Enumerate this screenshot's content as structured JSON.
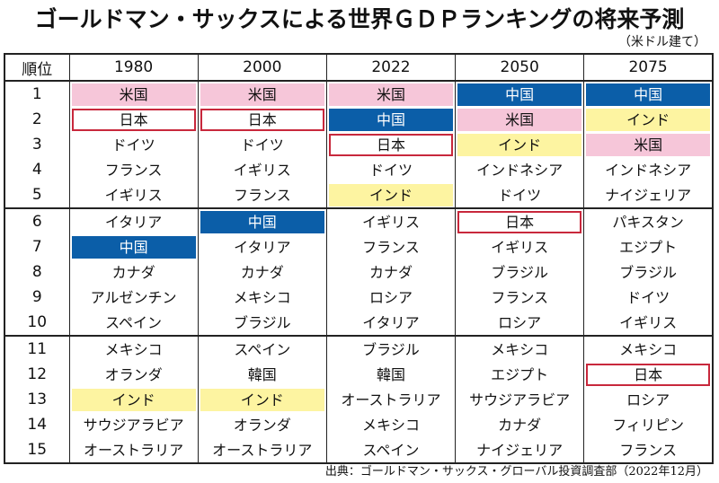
{
  "title": "ゴールドマン・サックスによる世界ＧＤＰランキングの将来予測",
  "subtitle": "（米ドル建て）",
  "source": "出典：ゴールドマン・サックス・グローバル投資調査部（2022年12月）",
  "colors": {
    "usa_fill": "#f6c6d9",
    "china_fill": "#0b5ea8",
    "india_fill": "#fdf4a1",
    "japan_border": "#c8283c"
  },
  "chart_data": {
    "type": "table",
    "header": [
      "順位",
      "1980",
      "2000",
      "2022",
      "2050",
      "2075"
    ],
    "rows": [
      [
        "1",
        "米国",
        "米国",
        "米国",
        "中国",
        "中国"
      ],
      [
        "2",
        "日本",
        "日本",
        "中国",
        "米国",
        "インド"
      ],
      [
        "3",
        "ドイツ",
        "ドイツ",
        "日本",
        "インド",
        "米国"
      ],
      [
        "4",
        "フランス",
        "イギリス",
        "ドイツ",
        "インドネシア",
        "インドネシア"
      ],
      [
        "5",
        "イギリス",
        "フランス",
        "インド",
        "ドイツ",
        "ナイジェリア"
      ],
      [
        "6",
        "イタリア",
        "中国",
        "イギリス",
        "日本",
        "パキスタン"
      ],
      [
        "7",
        "中国",
        "イタリア",
        "フランス",
        "イギリス",
        "エジプト"
      ],
      [
        "8",
        "カナダ",
        "カナダ",
        "カナダ",
        "ブラジル",
        "ブラジル"
      ],
      [
        "9",
        "アルゼンチン",
        "メキシコ",
        "ロシア",
        "フランス",
        "ドイツ"
      ],
      [
        "10",
        "スペイン",
        "ブラジル",
        "イタリア",
        "ロシア",
        "イギリス"
      ],
      [
        "11",
        "メキシコ",
        "スペイン",
        "ブラジル",
        "メキシコ",
        "メキシコ"
      ],
      [
        "12",
        "オランダ",
        "韓国",
        "韓国",
        "エジプト",
        "日本"
      ],
      [
        "13",
        "インド",
        "インド",
        "オーストラリア",
        "サウジアラビア",
        "ロシア"
      ],
      [
        "14",
        "サウジアラビア",
        "オランダ",
        "メキシコ",
        "カナダ",
        "フィリピン"
      ],
      [
        "15",
        "オーストラリア",
        "オーストラリア",
        "スペイン",
        "ナイジェリア",
        "フランス"
      ]
    ]
  }
}
